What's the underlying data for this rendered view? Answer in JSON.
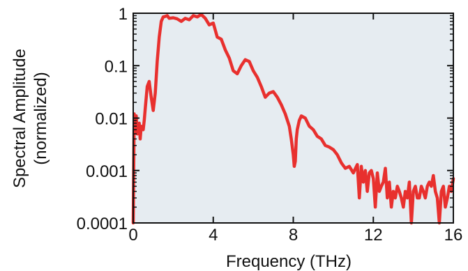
{
  "chart_data": {
    "type": "line",
    "xlabel": "Frequency (THz)",
    "ylabel_lines": [
      "Spectral Amplitude",
      "(normalized)"
    ],
    "xlim": [
      0,
      16
    ],
    "ylim": [
      0.0001,
      1
    ],
    "yscale": "log",
    "grid": false,
    "legend": "none",
    "x_ticks": [
      0,
      4,
      8,
      12,
      16
    ],
    "x_tick_labels": [
      "0",
      "4",
      "8",
      "12",
      "16"
    ],
    "y_ticks": [
      1,
      0.1,
      0.01,
      0.001,
      0.0001
    ],
    "y_tick_labels": [
      "1",
      "0.1",
      "0.01",
      "0.001",
      "0.0001"
    ],
    "colors": {
      "line": "#e8302e",
      "plot_background": "#e6ecf1",
      "axis": "#111111"
    },
    "series": [
      {
        "x": [
          0.0,
          0.05,
          0.1,
          0.15,
          0.2,
          0.3,
          0.35,
          0.4,
          0.5,
          0.55,
          0.6,
          0.7,
          0.8,
          0.9,
          1.0,
          1.1,
          1.2,
          1.3,
          1.4,
          1.5,
          1.6,
          1.7,
          1.8,
          2.0,
          2.2,
          2.4,
          2.6,
          2.8,
          3.0,
          3.2,
          3.4,
          3.6,
          3.8,
          4.0,
          4.2,
          4.4,
          4.6,
          4.8,
          5.0,
          5.2,
          5.4,
          5.6,
          5.8,
          6.0,
          6.2,
          6.4,
          6.6,
          6.8,
          7.0,
          7.2,
          7.4,
          7.6,
          7.8,
          7.9,
          8.0,
          8.05,
          8.1,
          8.15,
          8.2,
          8.3,
          8.4,
          8.6,
          8.8,
          9.0,
          9.2,
          9.4,
          9.6,
          9.8,
          10.0,
          10.2,
          10.4,
          10.6,
          10.8,
          11.0,
          11.2,
          11.3,
          11.4,
          11.5,
          11.6,
          11.7,
          11.8,
          11.9,
          12.0,
          12.1,
          12.2,
          12.3,
          12.4,
          12.5,
          12.6,
          12.7,
          12.8,
          12.9,
          13.0,
          13.1,
          13.2,
          13.3,
          13.4,
          13.5,
          13.6,
          13.7,
          13.8,
          13.9,
          14.0,
          14.1,
          14.2,
          14.3,
          14.4,
          14.5,
          14.6,
          14.7,
          14.8,
          14.9,
          15.0,
          15.1,
          15.2,
          15.3,
          15.4,
          15.5,
          15.6,
          15.7,
          15.8,
          15.9,
          16.0
        ],
        "y": [
          0.0001,
          0.012,
          0.006,
          0.011,
          0.005,
          0.008,
          0.004,
          0.007,
          0.006,
          0.009,
          0.015,
          0.04,
          0.05,
          0.025,
          0.014,
          0.03,
          0.12,
          0.35,
          0.7,
          0.85,
          0.87,
          0.9,
          0.8,
          0.82,
          0.78,
          0.7,
          0.8,
          0.75,
          0.9,
          0.85,
          0.95,
          0.8,
          0.6,
          0.65,
          0.35,
          0.32,
          0.2,
          0.14,
          0.08,
          0.07,
          0.1,
          0.13,
          0.12,
          0.08,
          0.06,
          0.04,
          0.025,
          0.03,
          0.032,
          0.025,
          0.018,
          0.012,
          0.007,
          0.004,
          0.002,
          0.0012,
          0.0015,
          0.004,
          0.006,
          0.009,
          0.011,
          0.01,
          0.007,
          0.006,
          0.0045,
          0.004,
          0.003,
          0.0028,
          0.0025,
          0.002,
          0.0014,
          0.0011,
          0.0012,
          0.0009,
          0.0013,
          0.0003,
          0.0012,
          0.0006,
          0.001,
          0.0004,
          0.0009,
          0.001,
          0.0007,
          0.0002,
          0.0009,
          0.0004,
          0.0005,
          0.0006,
          0.0011,
          0.0003,
          0.0006,
          0.0002,
          0.0004,
          0.0003,
          0.0005,
          0.0004,
          0.0003,
          0.0002,
          0.0004,
          0.0003,
          0.0006,
          0.0001,
          0.0004,
          0.0005,
          0.0003,
          0.0003,
          0.0005,
          0.0004,
          0.0003,
          0.0005,
          0.0006,
          0.0005,
          0.0008,
          0.0004,
          0.0003,
          0.0001,
          0.0004,
          0.0005,
          0.0002,
          0.0003,
          0.0005,
          0.0004,
          0.0007
        ]
      }
    ]
  }
}
